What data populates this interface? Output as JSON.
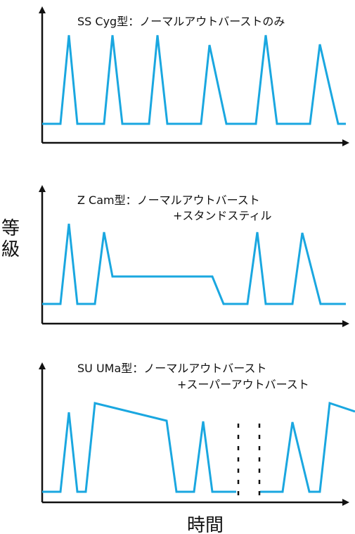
{
  "colors": {
    "curve": "#1aa7e0",
    "axis": "#111111"
  },
  "y_axis_label": "等級",
  "x_axis_label": "時間",
  "panels": [
    {
      "title_line1": "SS Cyg型：ノーマルアウトバーストのみ",
      "title_line2": ""
    },
    {
      "title_line1": "Z Cam型：ノーマルアウトバースト",
      "title_line2": "+スタンドスティル"
    },
    {
      "title_line1": "SU UMa型：ノーマルアウトバースト",
      "title_line2": "+スーパーアウトバースト"
    }
  ]
}
